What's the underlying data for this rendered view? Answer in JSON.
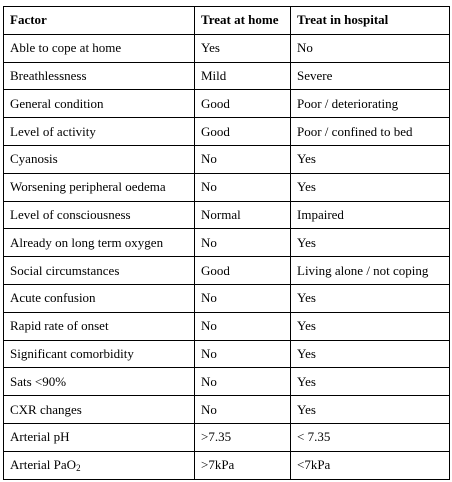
{
  "table": {
    "headers": [
      "Factor",
      "Treat at home",
      "Treat in hospital"
    ],
    "rows": [
      [
        "Able to cope at home",
        "Yes",
        "No"
      ],
      [
        "Breathlessness",
        "Mild",
        "Severe"
      ],
      [
        "General condition",
        "Good",
        "Poor / deteriorating"
      ],
      [
        "Level of activity",
        "Good",
        "Poor / confined to bed"
      ],
      [
        "Cyanosis",
        "No",
        "Yes"
      ],
      [
        "Worsening peripheral oedema",
        "No",
        "Yes"
      ],
      [
        "Level of consciousness",
        "Normal",
        "Impaired"
      ],
      [
        "Already on long term oxygen",
        "No",
        "Yes"
      ],
      [
        "Social circumstances",
        "Good",
        "Living alone / not coping"
      ],
      [
        "Acute confusion",
        "No",
        "Yes"
      ],
      [
        "Rapid rate of onset",
        "No",
        "Yes"
      ],
      [
        "Significant comorbidity",
        "No",
        "Yes"
      ],
      [
        "Sats <90%",
        "No",
        "Yes"
      ],
      [
        "CXR changes",
        "No",
        "Yes"
      ],
      [
        "Arterial pH",
        ">7.35",
        "< 7.35"
      ]
    ],
    "last_row": {
      "factor_prefix": "Arterial PaO",
      "factor_subscript": "2",
      "home": ">7kPa",
      "hospital": "<7kPa"
    }
  }
}
